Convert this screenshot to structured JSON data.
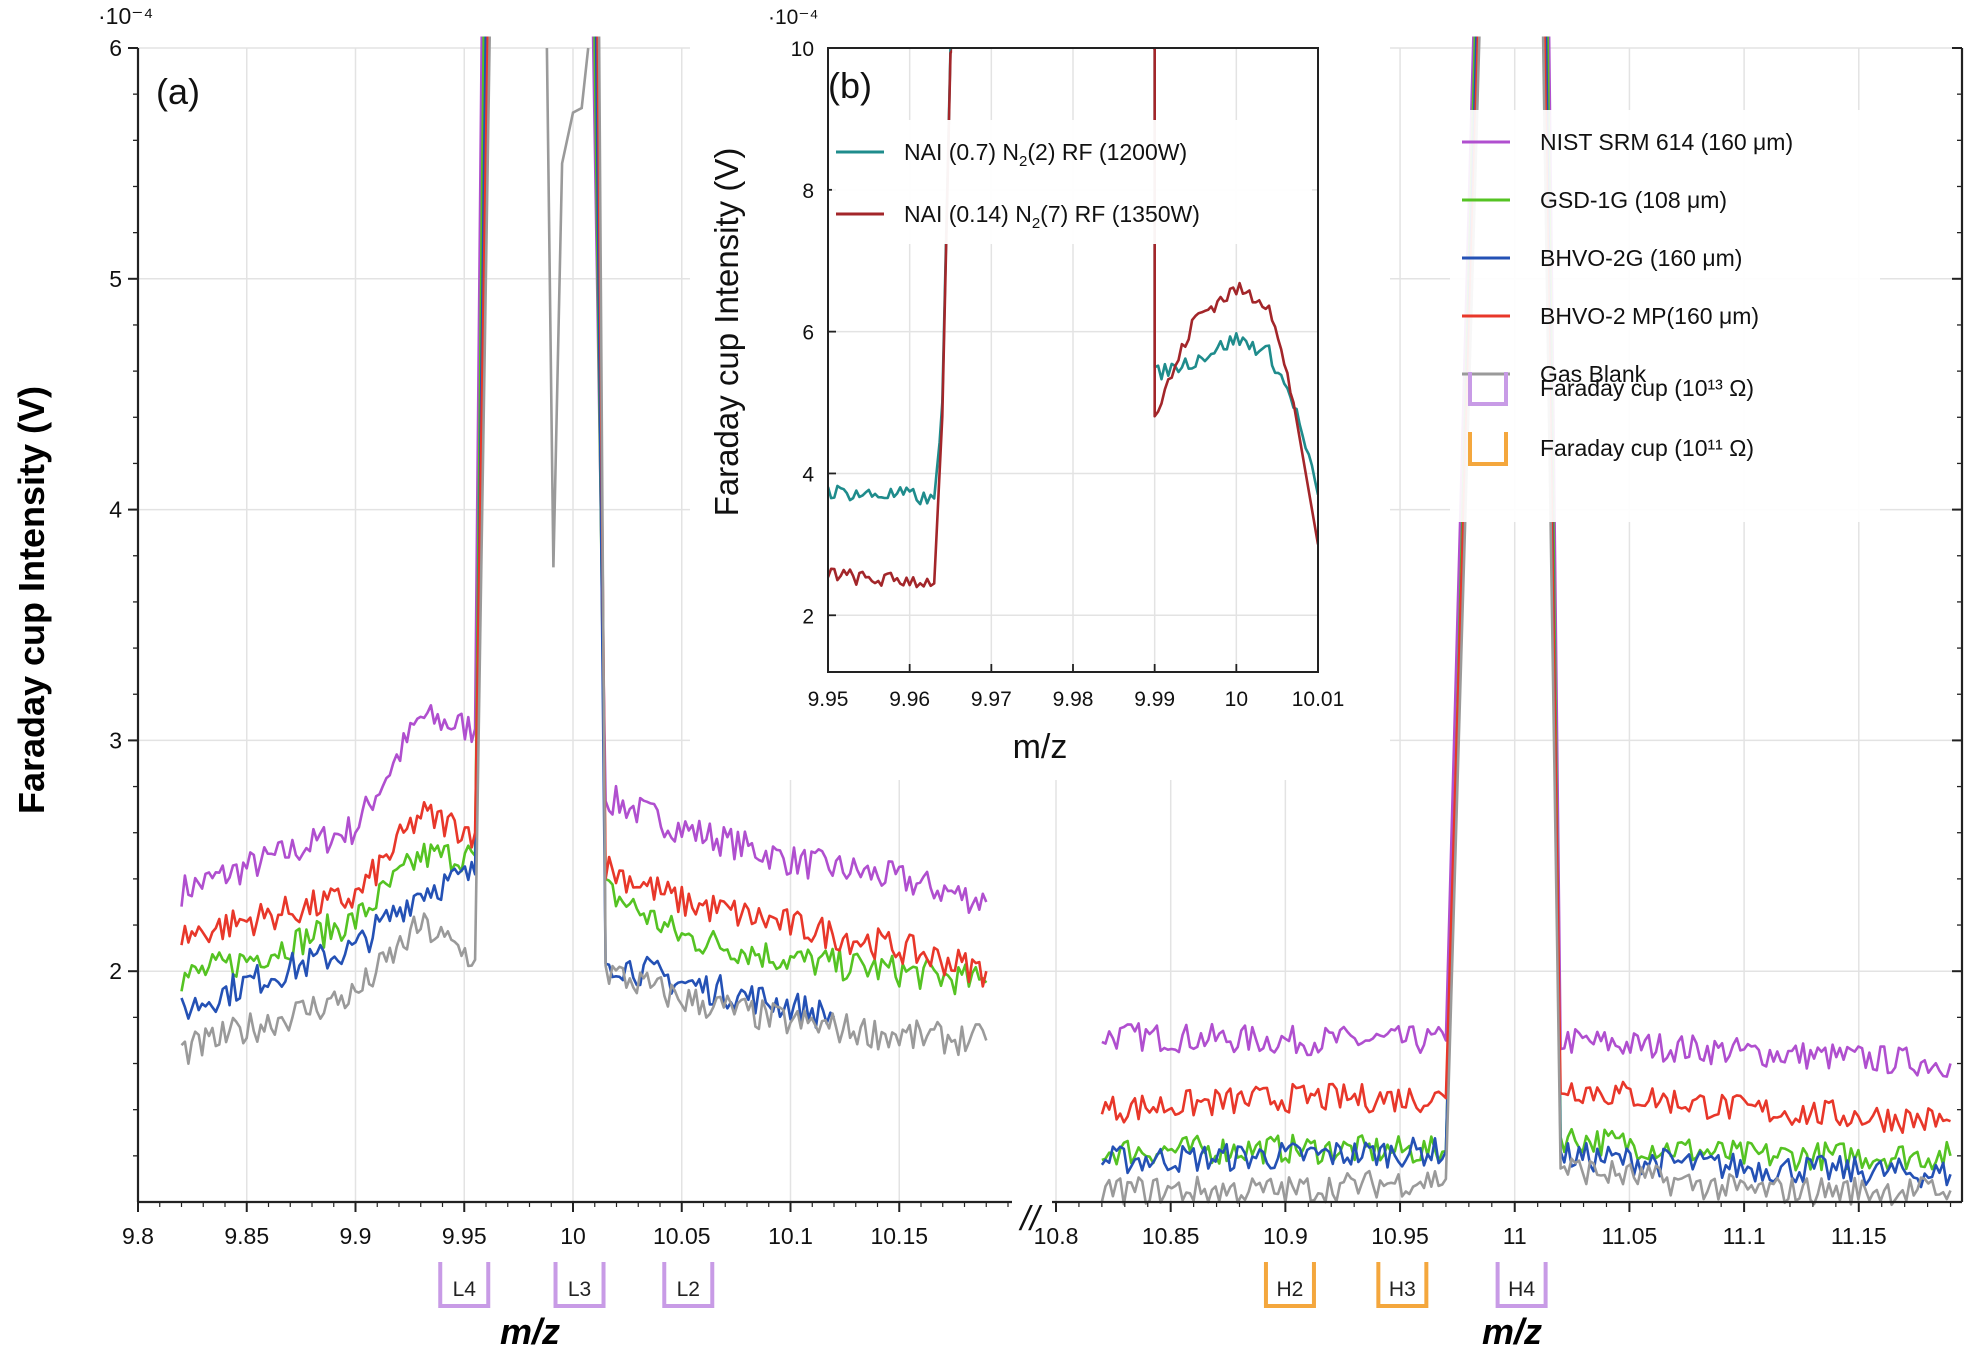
{
  "chart_data": [
    {
      "type": "line",
      "panel_label": "(a)",
      "ylabel": "Faraday cup Intensity (V)",
      "xlabel": "m/z",
      "y_exponent": "·10⁻⁴",
      "ylim": [
        1.0,
        6.0
      ],
      "y_ticks": [
        "2",
        "3",
        "4",
        "5",
        "6"
      ],
      "axis_break": "//",
      "x_segments": [
        {
          "xlim": [
            9.8,
            10.2
          ],
          "ticks": [
            "9.8",
            "9.85",
            "9.9",
            "9.95",
            "10",
            "10.05",
            "10.1",
            "10.15"
          ]
        },
        {
          "xlim": [
            10.8,
            11.195
          ],
          "ticks": [
            "10.8",
            "10.85",
            "10.9",
            "10.95",
            "11",
            "11.05",
            "11.1",
            "11.15"
          ]
        }
      ],
      "grid": true,
      "legend_position": "top-right",
      "series": [
        {
          "name": "NIST SRM 614 (160 μm)",
          "color": "#b04fcf",
          "seg1": {
            "left": [
              [
                9.82,
                2.35
              ],
              [
                9.85,
                2.45
              ],
              [
                9.9,
                2.62
              ],
              [
                9.93,
                3.1
              ],
              [
                9.955,
                3.05
              ]
            ],
            "right": [
              [
                10.015,
                2.75
              ],
              [
                10.05,
                2.62
              ],
              [
                10.1,
                2.48
              ],
              [
                10.15,
                2.4
              ],
              [
                10.19,
                2.3
              ]
            ]
          },
          "seg2": {
            "left": [
              [
                10.82,
                1.72
              ],
              [
                10.9,
                1.7
              ],
              [
                10.97,
                1.7
              ]
            ],
            "right": [
              [
                11.02,
                1.7
              ],
              [
                11.1,
                1.65
              ],
              [
                11.19,
                1.6
              ]
            ]
          }
        },
        {
          "name": "GSD-1G (108 μm)",
          "color": "#55c323",
          "seg1": {
            "left": [
              [
                9.82,
                1.97
              ],
              [
                9.85,
                2.05
              ],
              [
                9.9,
                2.22
              ],
              [
                9.93,
                2.5
              ],
              [
                9.955,
                2.5
              ]
            ],
            "right": [
              [
                10.015,
                2.35
              ],
              [
                10.05,
                2.15
              ],
              [
                10.1,
                2.05
              ],
              [
                10.15,
                2.0
              ],
              [
                10.19,
                1.95
              ]
            ]
          },
          "seg2": {
            "left": [
              [
                10.82,
                1.22
              ],
              [
                10.9,
                1.23
              ],
              [
                10.97,
                1.22
              ]
            ],
            "right": [
              [
                11.02,
                1.28
              ],
              [
                11.1,
                1.2
              ],
              [
                11.19,
                1.2
              ]
            ]
          }
        },
        {
          "name": "BHVO-2G (160 μm)",
          "color": "#2451b5",
          "seg1": {
            "left": [
              [
                9.82,
                1.83
              ],
              [
                9.85,
                1.95
              ],
              [
                9.9,
                2.1
              ],
              [
                9.93,
                2.35
              ],
              [
                9.955,
                2.42
              ]
            ],
            "right": [
              [
                10.015,
                2.05
              ],
              [
                10.05,
                1.95
              ],
              [
                10.1,
                1.85
              ],
              [
                10.12,
                1.8
              ]
            ]
          },
          "seg2": {
            "left": [
              [
                10.82,
                1.18
              ],
              [
                10.9,
                1.2
              ],
              [
                10.97,
                1.22
              ]
            ],
            "right": [
              [
                11.02,
                1.2
              ],
              [
                11.1,
                1.15
              ],
              [
                11.19,
                1.12
              ]
            ]
          }
        },
        {
          "name": "BHVO-2 MP(160 μm)",
          "color": "#e8372a",
          "seg1": {
            "left": [
              [
                9.82,
                2.15
              ],
              [
                9.85,
                2.22
              ],
              [
                9.9,
                2.32
              ],
              [
                9.93,
                2.68
              ],
              [
                9.955,
                2.6
              ]
            ],
            "right": [
              [
                10.015,
                2.45
              ],
              [
                10.05,
                2.3
              ],
              [
                10.1,
                2.2
              ],
              [
                10.15,
                2.1
              ],
              [
                10.19,
                2.0
              ]
            ]
          },
          "seg2": {
            "left": [
              [
                10.82,
                1.4
              ],
              [
                10.9,
                1.45
              ],
              [
                10.97,
                1.45
              ]
            ],
            "right": [
              [
                11.02,
                1.5
              ],
              [
                11.1,
                1.4
              ],
              [
                11.19,
                1.35
              ]
            ]
          }
        },
        {
          "name": "Gas Blank",
          "color": "#9a9a9a",
          "seg1": {
            "left": [
              [
                9.82,
                1.65
              ],
              [
                9.85,
                1.75
              ],
              [
                9.9,
                1.9
              ],
              [
                9.93,
                2.2
              ],
              [
                9.955,
                2.05
              ]
            ],
            "right": [
              [
                10.015,
                2.0
              ],
              [
                10.05,
                1.88
              ],
              [
                10.1,
                1.78
              ],
              [
                10.15,
                1.72
              ],
              [
                10.19,
                1.7
              ]
            ]
          },
          "seg2": {
            "left": [
              [
                10.82,
                1.05
              ],
              [
                10.9,
                1.05
              ],
              [
                10.97,
                1.1
              ]
            ],
            "right": [
              [
                11.02,
                1.15
              ],
              [
                11.1,
                1.05
              ],
              [
                11.19,
                1.05
              ]
            ]
          }
        }
      ],
      "gas_blank_dip": [
        [
          9.988,
          6.0
        ],
        [
          9.991,
          3.75
        ],
        [
          9.995,
          5.5
        ],
        [
          10.0,
          5.72
        ],
        [
          10.004,
          5.74
        ],
        [
          10.007,
          6.0
        ]
      ],
      "cups": [
        {
          "label": "L4",
          "x": 9.95,
          "type": "10^13"
        },
        {
          "label": "L3",
          "x": 10.003,
          "type": "10^13"
        },
        {
          "label": "L2",
          "x": 10.053,
          "type": "10^13"
        },
        {
          "label": "H2",
          "x": 10.902,
          "type": "10^11"
        },
        {
          "label": "H3",
          "x": 10.951,
          "type": "10^11"
        },
        {
          "label": "H4",
          "x": 11.003,
          "type": "10^13"
        }
      ],
      "cup_legend": [
        {
          "text": "Faraday cup (10¹³ Ω)",
          "color": "#c89be6"
        },
        {
          "text": "Faraday cup (10¹¹  Ω)",
          "color": "#f4a73d"
        }
      ]
    },
    {
      "type": "line",
      "panel_label": "(b)",
      "ylabel": "Faraday cup Intensity (V)",
      "xlabel": "m/z",
      "y_exponent": "·10⁻⁴",
      "xlim": [
        9.95,
        10.01
      ],
      "ylim": [
        1.2,
        10
      ],
      "x_ticks": [
        "9.95",
        "9.96",
        "9.97",
        "9.98",
        "9.99",
        "10",
        "10.01"
      ],
      "y_ticks": [
        "2",
        "4",
        "6",
        "8",
        "10"
      ],
      "grid": true,
      "legend_position": "top-left",
      "series": [
        {
          "name": "NAI (0.7) N₂(2) RF (1200W)",
          "name_parts": [
            "NAI (0.7) N",
            "2",
            "(2) RF (1200W)"
          ],
          "color": "#1f8c8c",
          "points": [
            [
              9.95,
              3.75
            ],
            [
              9.955,
              3.7
            ],
            [
              9.96,
              3.7
            ],
            [
              9.963,
              3.6
            ],
            [
              9.964,
              5.0
            ],
            [
              9.965,
              10
            ],
            [
              9.99,
              10
            ],
            [
              9.99,
              5.4
            ],
            [
              9.995,
              5.6
            ],
            [
              10.0,
              5.9
            ],
            [
              10.004,
              5.7
            ],
            [
              10.007,
              5.0
            ],
            [
              10.01,
              3.7
            ]
          ]
        },
        {
          "name": "NAI (0.14) N₂(7) RF (1350W)",
          "name_parts": [
            "NAI (0.14) N",
            "2",
            "(7) RF (1350W)"
          ],
          "color": "#a3262a",
          "points": [
            [
              9.95,
              2.6
            ],
            [
              9.955,
              2.5
            ],
            [
              9.96,
              2.5
            ],
            [
              9.963,
              2.45
            ],
            [
              9.964,
              4.8
            ],
            [
              9.965,
              10
            ],
            [
              9.99,
              10
            ],
            [
              9.99,
              4.8
            ],
            [
              9.995,
              6.2
            ],
            [
              10.0,
              6.6
            ],
            [
              10.004,
              6.4
            ],
            [
              10.007,
              5.0
            ],
            [
              10.01,
              3.0
            ]
          ]
        }
      ]
    }
  ]
}
